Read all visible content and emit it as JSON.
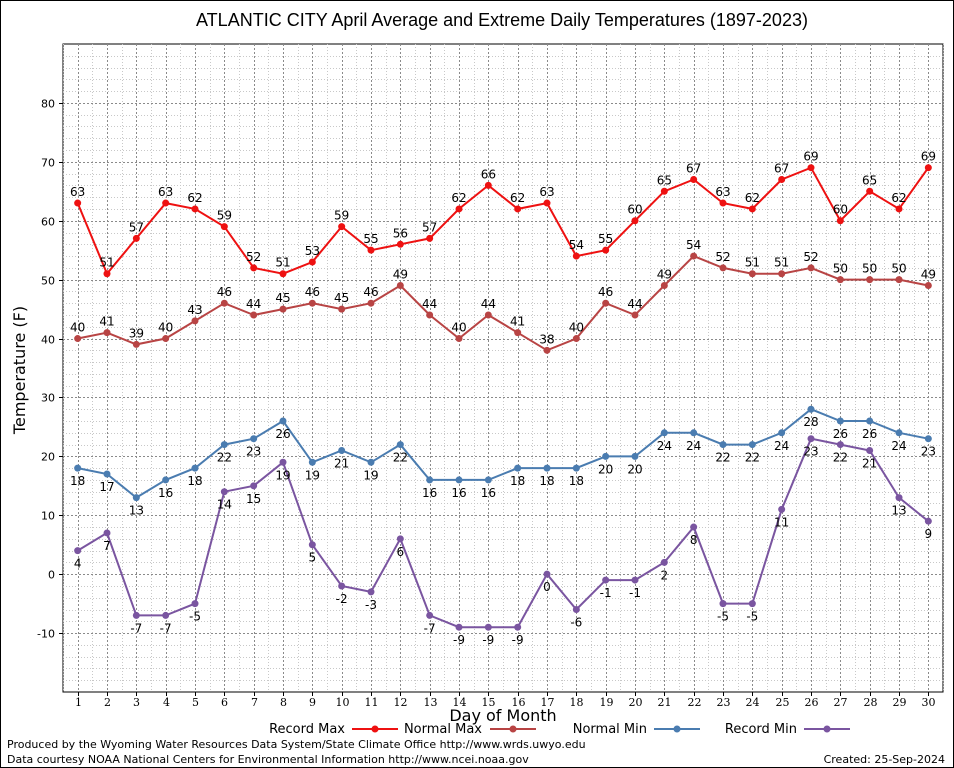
{
  "chart_data": {
    "type": "line",
    "title": "ATLANTIC CITY April Average and Extreme Daily Temperatures (1897-2023)",
    "xlabel": "Day of Month",
    "ylabel": "Temperature (F)",
    "ylim": [
      -20,
      90
    ],
    "xlim": [
      0.5,
      30.5
    ],
    "yticks": [
      -10,
      0,
      10,
      20,
      30,
      40,
      50,
      60,
      70,
      80
    ],
    "x": [
      1,
      2,
      3,
      4,
      5,
      6,
      7,
      8,
      9,
      10,
      11,
      12,
      13,
      14,
      15,
      16,
      17,
      18,
      19,
      20,
      21,
      22,
      23,
      24,
      25,
      26,
      27,
      28,
      29,
      30
    ],
    "grid": true,
    "legend_position": "bottom",
    "series": [
      {
        "name": "Record Max",
        "color": "#ee1111",
        "label_position": "above",
        "values": [
          63,
          51,
          57,
          63,
          62,
          59,
          52,
          51,
          53,
          59,
          55,
          56,
          57,
          62,
          66,
          62,
          63,
          54,
          55,
          60,
          65,
          67,
          63,
          62,
          67,
          69,
          60,
          65,
          62,
          69
        ]
      },
      {
        "name": "Normal Max",
        "color": "#b84444",
        "label_position": "above",
        "values": [
          40,
          41,
          39,
          40,
          43,
          46,
          44,
          45,
          46,
          45,
          46,
          49,
          44,
          40,
          44,
          41,
          38,
          40,
          46,
          44,
          49,
          54,
          52,
          51,
          51,
          52,
          50,
          50,
          50,
          49
        ]
      },
      {
        "name": "Normal Min",
        "color": "#4a7cb0",
        "label_position": "below",
        "values": [
          18,
          17,
          13,
          16,
          18,
          22,
          23,
          26,
          19,
          21,
          19,
          22,
          16,
          16,
          16,
          18,
          18,
          18,
          20,
          20,
          24,
          24,
          22,
          22,
          24,
          28,
          26,
          26,
          24,
          23
        ]
      },
      {
        "name": "Record Min",
        "color": "#7a55a0",
        "label_position": "below",
        "values": [
          4,
          7,
          -7,
          -7,
          -5,
          14,
          15,
          19,
          5,
          -2,
          -3,
          6,
          -7,
          -9,
          -9,
          -9,
          0,
          -6,
          -1,
          -1,
          2,
          8,
          -5,
          -5,
          11,
          23,
          22,
          21,
          13,
          9
        ]
      }
    ]
  },
  "footer": {
    "line1": "Produced by the Wyoming Water Resources Data System/State Climate Office http://www.wrds.uwyo.edu",
    "line2": "Data courtesy NOAA National Centers for Environmental Information http://www.ncei.noaa.gov",
    "created": "Created:  25-Sep-2024"
  }
}
